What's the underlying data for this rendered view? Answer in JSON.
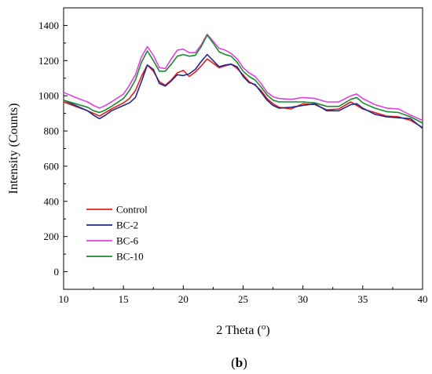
{
  "chart_data": {
    "type": "line",
    "xlabel": "2 Theta (",
    "xlabel_sup": "o",
    "xlabel_end": ")",
    "ylabel": "Intensity (Counts)",
    "xlim": [
      10,
      40
    ],
    "ylim": [
      -100,
      1500
    ],
    "x_ticks": [
      10,
      15,
      20,
      25,
      30,
      35,
      40
    ],
    "y_ticks": [
      0,
      200,
      400,
      600,
      800,
      1000,
      1200,
      1400
    ],
    "grid": false,
    "legend_position": "bottom-left",
    "caption_open": "(",
    "caption_bold": "b",
    "caption_close": ")",
    "series": [
      {
        "name": "Control",
        "color": "#e0201c",
        "x": [
          10,
          11,
          12,
          12.5,
          13,
          13.5,
          14,
          15,
          15.5,
          16,
          16.5,
          17,
          17.5,
          18,
          18.5,
          19,
          19.5,
          20,
          20.5,
          21,
          21.5,
          22,
          22.5,
          23,
          23.5,
          24,
          24.5,
          25,
          25.5,
          26,
          26.5,
          27,
          27.5,
          28,
          29,
          30,
          31,
          32,
          33,
          34,
          34.5,
          35,
          36,
          37,
          38,
          39,
          40
        ],
        "y": [
          965,
          940,
          915,
          900,
          885,
          905,
          925,
          960,
          985,
          1030,
          1110,
          1175,
          1140,
          1080,
          1060,
          1090,
          1130,
          1145,
          1110,
          1135,
          1170,
          1210,
          1185,
          1160,
          1170,
          1180,
          1155,
          1120,
          1080,
          1060,
          1030,
          985,
          955,
          935,
          925,
          955,
          950,
          920,
          925,
          965,
          945,
          925,
          905,
          885,
          880,
          860,
          820
        ]
      },
      {
        "name": "BC-2",
        "color": "#1f2a8a",
        "x": [
          10,
          11,
          12,
          12.5,
          13,
          13.5,
          14,
          15,
          15.5,
          16,
          16.5,
          17,
          17.5,
          18,
          18.5,
          19,
          19.5,
          20,
          20.5,
          21,
          21.5,
          22,
          22.5,
          23,
          23.5,
          24,
          24.5,
          25,
          25.5,
          26,
          26.5,
          27,
          27.5,
          28,
          29,
          30,
          31,
          32,
          33,
          34,
          34.5,
          35,
          36,
          37,
          38,
          39,
          40
        ],
        "y": [
          975,
          945,
          915,
          890,
          870,
          890,
          915,
          945,
          960,
          990,
          1080,
          1175,
          1150,
          1070,
          1055,
          1085,
          1120,
          1115,
          1125,
          1150,
          1195,
          1235,
          1200,
          1165,
          1175,
          1180,
          1165,
          1110,
          1075,
          1065,
          1020,
          975,
          945,
          930,
          935,
          945,
          955,
          915,
          915,
          950,
          955,
          930,
          895,
          880,
          875,
          870,
          815
        ]
      },
      {
        "name": "BC-6",
        "color": "#e040e0",
        "x": [
          10,
          11,
          12,
          12.5,
          13,
          13.5,
          14,
          15,
          15.5,
          16,
          16.5,
          17,
          17.5,
          18,
          18.5,
          19,
          19.5,
          20,
          20.5,
          21,
          21.5,
          22,
          22.5,
          23,
          23.5,
          24,
          24.5,
          25,
          25.5,
          26,
          26.5,
          27,
          27.5,
          28,
          29,
          30,
          31,
          32,
          33,
          34,
          34.5,
          35,
          36,
          37,
          38,
          39,
          40
        ],
        "y": [
          1020,
          990,
          965,
          945,
          930,
          945,
          965,
          1010,
          1060,
          1120,
          1220,
          1280,
          1230,
          1160,
          1155,
          1210,
          1260,
          1265,
          1245,
          1245,
          1290,
          1350,
          1310,
          1270,
          1260,
          1240,
          1210,
          1160,
          1130,
          1110,
          1070,
          1020,
          995,
          985,
          980,
          990,
          985,
          965,
          965,
          1000,
          1010,
          985,
          950,
          930,
          925,
          890,
          860
        ]
      },
      {
        "name": "BC-10",
        "color": "#1a8a2e",
        "x": [
          10,
          11,
          12,
          12.5,
          13,
          13.5,
          14,
          15,
          15.5,
          16,
          16.5,
          17,
          17.5,
          18,
          18.5,
          19,
          19.5,
          20,
          20.5,
          21,
          21.5,
          22,
          22.5,
          23,
          23.5,
          24,
          24.5,
          25,
          25.5,
          26,
          26.5,
          27,
          27.5,
          28,
          29,
          30,
          31,
          32,
          33,
          34,
          34.5,
          35,
          36,
          37,
          38,
          39,
          40
        ],
        "y": [
          975,
          955,
          935,
          915,
          905,
          920,
          940,
          985,
          1030,
          1090,
          1190,
          1255,
          1200,
          1140,
          1140,
          1180,
          1225,
          1235,
          1225,
          1230,
          1280,
          1345,
          1300,
          1250,
          1235,
          1225,
          1190,
          1140,
          1110,
          1090,
          1050,
          1005,
          975,
          965,
          965,
          965,
          960,
          940,
          940,
          980,
          990,
          960,
          930,
          910,
          905,
          880,
          845
        ]
      }
    ]
  }
}
